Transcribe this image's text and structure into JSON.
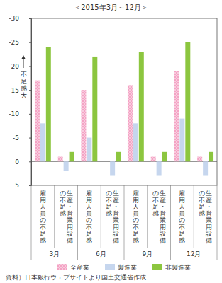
{
  "chart_data": {
    "type": "bar",
    "title": "＜2015年3月～12月＞",
    "y_label": "不足感大",
    "source": "資料）日本銀行ウェブサイトより国土交通省作成",
    "categories": [
      "雇用人員の不足感",
      "生産・営業用設備の不足感",
      "雇用人員の不足感",
      "生産・営業用設備の不足感",
      "雇用人員の不足感",
      "生産・営業用設備の不足感",
      "雇用人員の不足感",
      "生産・営業用設備の不足感"
    ],
    "groups": [
      "3月",
      "6月",
      "9月",
      "12月"
    ],
    "series": [
      {
        "name": "全産業",
        "color": "#f4a3c4",
        "values": [
          -17,
          -1,
          -15,
          0,
          -16,
          -1,
          -19,
          -1
        ]
      },
      {
        "name": "製造業",
        "color": "#c6d6ee",
        "values": [
          -8,
          2,
          -5,
          3,
          -8,
          3,
          -9,
          3
        ]
      },
      {
        "name": "非製造業",
        "color": "#8cc63f",
        "values": [
          -24,
          -2,
          -22,
          -2,
          -23,
          -2,
          -25,
          -2
        ]
      }
    ],
    "ylim": [
      5,
      -30
    ],
    "yticks": [
      5,
      0,
      -5,
      -10,
      -15,
      -20,
      -25,
      -30
    ],
    "grid": false,
    "legend": "bottom"
  }
}
